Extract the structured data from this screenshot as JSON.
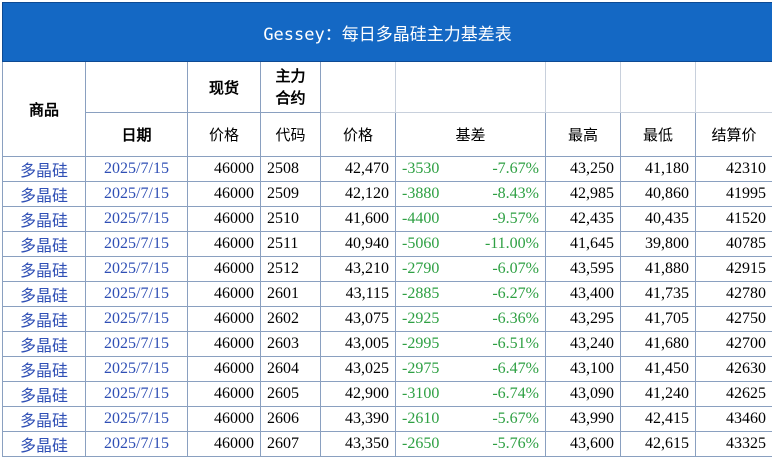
{
  "title": "Gessey：每日多晶硅主力基差表",
  "header": {
    "row1": [
      "商品",
      "现货",
      "主力合约"
    ],
    "row2": [
      "日期",
      "价格",
      "代码",
      "价格",
      "基差",
      "最高",
      "最低",
      "结算价"
    ]
  },
  "table": {
    "rows": [
      [
        "多晶硅",
        "2025/7/15",
        "46000",
        "2508",
        "42,470",
        "-3530",
        "-7.67%",
        "43,250",
        "41,180",
        "42310"
      ],
      [
        "多晶硅",
        "2025/7/15",
        "46000",
        "2509",
        "42,120",
        "-3880",
        "-8.43%",
        "42,985",
        "40,860",
        "41995"
      ],
      [
        "多晶硅",
        "2025/7/15",
        "46000",
        "2510",
        "41,600",
        "-4400",
        "-9.57%",
        "42,435",
        "40,435",
        "41520"
      ],
      [
        "多晶硅",
        "2025/7/15",
        "46000",
        "2511",
        "40,940",
        "-5060",
        "-11.00%",
        "41,645",
        "39,800",
        "40785"
      ],
      [
        "多晶硅",
        "2025/7/15",
        "46000",
        "2512",
        "43,210",
        "-2790",
        "-6.07%",
        "43,595",
        "41,880",
        "42915"
      ],
      [
        "多晶硅",
        "2025/7/15",
        "46000",
        "2601",
        "43,115",
        "-2885",
        "-6.27%",
        "43,400",
        "41,735",
        "42780"
      ],
      [
        "多晶硅",
        "2025/7/15",
        "46000",
        "2602",
        "43,075",
        "-2925",
        "-6.36%",
        "43,295",
        "41,705",
        "42750"
      ],
      [
        "多晶硅",
        "2025/7/15",
        "46000",
        "2603",
        "43,005",
        "-2995",
        "-6.51%",
        "43,240",
        "41,680",
        "42700"
      ],
      [
        "多晶硅",
        "2025/7/15",
        "46000",
        "2604",
        "43,025",
        "-2975",
        "-6.47%",
        "43,100",
        "41,450",
        "42630"
      ],
      [
        "多晶硅",
        "2025/7/15",
        "46000",
        "2605",
        "42,900",
        "-3100",
        "-6.74%",
        "43,090",
        "41,240",
        "42625"
      ],
      [
        "多晶硅",
        "2025/7/15",
        "46000",
        "2606",
        "43,390",
        "-2610",
        "-5.67%",
        "43,990",
        "42,415",
        "43460"
      ],
      [
        "多晶硅",
        "2025/7/15",
        "46000",
        "2607",
        "43,350",
        "-2650",
        "-5.76%",
        "43,600",
        "42,615",
        "43325"
      ]
    ]
  }
}
